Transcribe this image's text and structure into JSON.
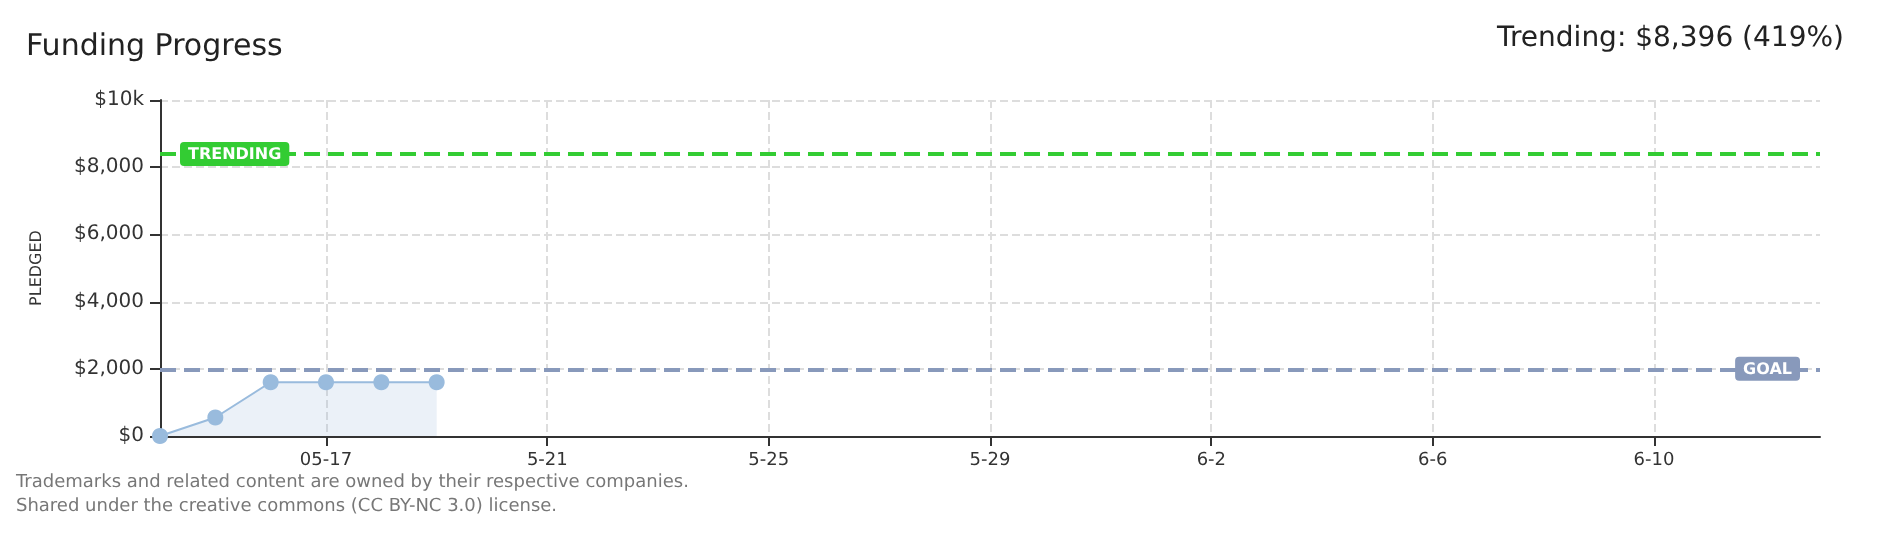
{
  "chart_data": {
    "type": "area",
    "title": "Funding Progress",
    "subtitle": "Trending: $8,396 (419%)",
    "ylabel": "PLEDGED",
    "x": [
      "--05-14",
      "--05-15",
      "--05-16",
      "--05-17",
      "--05-18",
      "--05-19"
    ],
    "series": [
      {
        "color": "#99bbdd",
        "values": [
          0,
          550,
          1600,
          1600,
          1600,
          1600
        ]
      }
    ],
    "xlim": [
      "--05-14",
      "--06-13"
    ],
    "xticks": [
      {
        "value": "--05-17",
        "label": "05-17"
      },
      {
        "value": "--05-21",
        "label": "5-21"
      },
      {
        "value": "--05-25",
        "label": "5-25"
      },
      {
        "value": "--05-29",
        "label": "5-29"
      },
      {
        "value": "--06-02",
        "label": "6-2"
      },
      {
        "value": "--06-06",
        "label": "6-6"
      },
      {
        "value": "--06-10",
        "label": "6-10"
      }
    ],
    "ylim": [
      0,
      10000
    ],
    "yticks": [
      {
        "value": 0,
        "label": "$0"
      },
      {
        "value": 2000,
        "label": "$2,000"
      },
      {
        "value": 4000,
        "label": "$4,000"
      },
      {
        "value": 6000,
        "label": "$6,000"
      },
      {
        "value": 8000,
        "label": "$8,000"
      },
      {
        "value": 10000,
        "label": "$10k"
      }
    ],
    "ref_lines": [
      {
        "axis": "y",
        "value": 8396,
        "label": "TRENDING",
        "color": "#33cc33",
        "line_style": "dashed"
      },
      {
        "axis": "y",
        "value": 2000,
        "label": "GOAL",
        "color": "#8899bb",
        "line_style": "dashed"
      }
    ],
    "grid": true,
    "marker": "circle",
    "annotations": [
      "Trademarks and related content are owned by their respective companies.",
      "Shared under the creative commons (CC BY-NC 3.0) license."
    ]
  }
}
